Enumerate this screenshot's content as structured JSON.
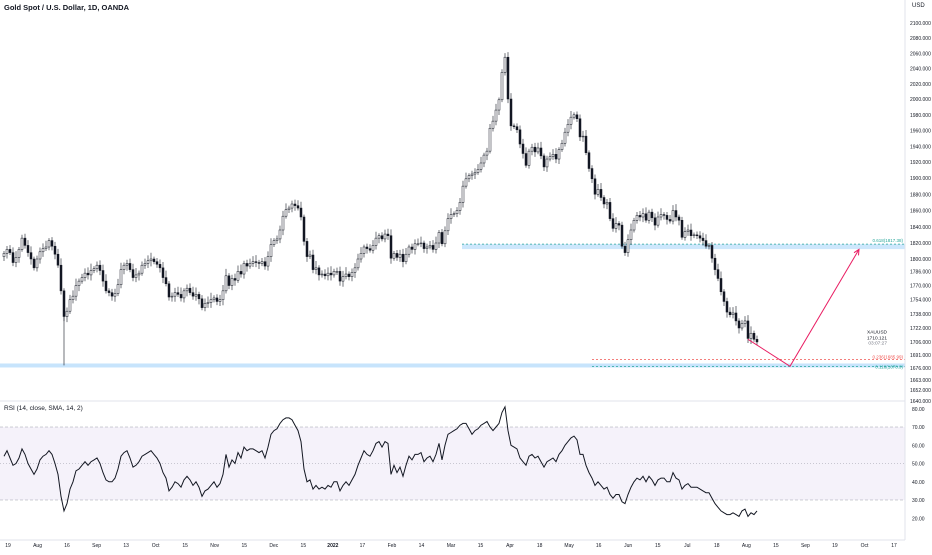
{
  "chart_data": [
    {
      "type": "candlestick",
      "title": "Gold Spot / U.S. Dollar, 1D, OANDA",
      "currency": "USD",
      "y_axis_labels": [
        "2100.000",
        "2080.000",
        "2060.000",
        "2040.000",
        "2020.000",
        "2000.000",
        "1980.000",
        "1960.000",
        "1940.000",
        "1920.000",
        "1900.000",
        "1880.000",
        "1860.000",
        "1840.000",
        "1820.000",
        "1800.000",
        "1786.000",
        "1770.000",
        "1754.000",
        "1738.000",
        "1722.000",
        "1706.000",
        "1691.000",
        "1676.000",
        "1663.000",
        "1652.000",
        "1640.000"
      ],
      "x_axis_labels": [
        "19",
        "Aug",
        "16",
        "Sep",
        "13",
        "Oct",
        "15",
        "Nov",
        "15",
        "Dec",
        "15",
        "2022",
        "17",
        "Feb",
        "14",
        "Mar",
        "15",
        "Apr",
        "18",
        "May",
        "16",
        "Jun",
        "15",
        "Jul",
        "18",
        "Aug",
        "15",
        "Sep",
        "19",
        "Oct",
        "17"
      ],
      "close_series": [
        1807,
        1812,
        1808,
        1796,
        1802,
        1812,
        1826,
        1817,
        1808,
        1800,
        1790,
        1800,
        1809,
        1813,
        1815,
        1823,
        1816,
        1806,
        1793,
        1764,
        1735,
        1741,
        1754,
        1758,
        1770,
        1775,
        1779,
        1784,
        1782,
        1787,
        1789,
        1793,
        1787,
        1775,
        1764,
        1762,
        1758,
        1761,
        1771,
        1788,
        1793,
        1795,
        1788,
        1779,
        1782,
        1784,
        1793,
        1795,
        1798,
        1800,
        1797,
        1794,
        1790,
        1779,
        1772,
        1757,
        1758,
        1762,
        1760,
        1756,
        1764,
        1767,
        1762,
        1758,
        1760,
        1755,
        1745,
        1750,
        1751,
        1754,
        1756,
        1752,
        1754,
        1764,
        1781,
        1770,
        1778,
        1776,
        1786,
        1783,
        1795,
        1792,
        1795,
        1797,
        1796,
        1795,
        1797,
        1792,
        1803,
        1818,
        1823,
        1825,
        1836,
        1853,
        1861,
        1863,
        1868,
        1866,
        1863,
        1852,
        1822,
        1803,
        1805,
        1788,
        1790,
        1782,
        1783,
        1781,
        1784,
        1782,
        1786,
        1786,
        1775,
        1780,
        1783,
        1780,
        1785,
        1790,
        1800,
        1807,
        1815,
        1813,
        1811,
        1817,
        1826,
        1829,
        1825,
        1831,
        1829,
        1801,
        1807,
        1802,
        1806,
        1797,
        1806,
        1815,
        1812,
        1819,
        1819,
        1820,
        1813,
        1815,
        1817,
        1812,
        1820,
        1833,
        1819,
        1835,
        1850,
        1855,
        1856,
        1860,
        1870,
        1890,
        1899,
        1903,
        1905,
        1907,
        1911,
        1919,
        1929,
        1934,
        1963,
        1972,
        1986,
        1999,
        2035,
        2055,
        2000,
        1966,
        1965,
        1961,
        1943,
        1931,
        1916,
        1934,
        1939,
        1933,
        1938,
        1928,
        1914,
        1924,
        1927,
        1930,
        1924,
        1936,
        1944,
        1958,
        1968,
        1977,
        1980,
        1975,
        1952,
        1953,
        1932,
        1912,
        1899,
        1880,
        1886,
        1876,
        1868,
        1870,
        1850,
        1838,
        1844,
        1842,
        1816,
        1808,
        1824,
        1836,
        1848,
        1854,
        1852,
        1856,
        1848,
        1858,
        1851,
        1842,
        1852,
        1855,
        1854,
        1849,
        1847,
        1860,
        1852,
        1848,
        1827,
        1834,
        1836,
        1829,
        1830,
        1829,
        1826,
        1823,
        1816,
        1817,
        1801,
        1788,
        1778,
        1763,
        1752,
        1740,
        1737,
        1739,
        1730,
        1722,
        1727,
        1730,
        1710,
        1716,
        1709,
        1706
      ],
      "horizontal_levels": [
        {
          "label": "0.618(1817.38)",
          "value": 1817.38
        },
        {
          "label": "0.236(1685.99)",
          "value": 1685.99
        },
        {
          "label": "0.118(1678.9)",
          "value": 1678.9
        }
      ],
      "ticker_label": "XAUUSD",
      "last_price": "1710.121",
      "countdown": "03:07:27",
      "projection_path": [
        {
          "x_index": 248,
          "y": 1709
        },
        {
          "x_index": 262,
          "y": 1678
        },
        {
          "x_index": 285,
          "y": 1812
        }
      ]
    },
    {
      "type": "line",
      "title": "RSI (14, close, SMA, 14, 2)",
      "y_axis_labels": [
        "80.00",
        "70.00",
        "60.00",
        "50.00",
        "40.00",
        "30.00",
        "20.00"
      ],
      "ylim": [
        18,
        84
      ],
      "upper_band": 70,
      "middle_band": 50,
      "lower_band": 30,
      "values": [
        54,
        57,
        53,
        49,
        50,
        53,
        58,
        55,
        50,
        47,
        44,
        47,
        52,
        54,
        55,
        57,
        55,
        50,
        44,
        32,
        24,
        28,
        36,
        40,
        46,
        47,
        49,
        51,
        49,
        51,
        52,
        53,
        50,
        45,
        41,
        40,
        40,
        42,
        47,
        54,
        56,
        57,
        53,
        48,
        49,
        51,
        54,
        55,
        56,
        57,
        55,
        53,
        50,
        45,
        42,
        35,
        37,
        40,
        39,
        37,
        41,
        43,
        41,
        38,
        40,
        37,
        32,
        35,
        36,
        38,
        40,
        37,
        39,
        44,
        55,
        48,
        52,
        50,
        56,
        53,
        59,
        57,
        58,
        58,
        57,
        56,
        57,
        53,
        59,
        66,
        68,
        69,
        72,
        74,
        75,
        75,
        74,
        71,
        68,
        62,
        47,
        40,
        41,
        36,
        38,
        36,
        37,
        36,
        38,
        37,
        40,
        40,
        35,
        38,
        40,
        38,
        41,
        44,
        49,
        53,
        57,
        55,
        54,
        57,
        61,
        62,
        59,
        62,
        61,
        44,
        49,
        45,
        48,
        43,
        49,
        54,
        52,
        55,
        55,
        56,
        51,
        53,
        54,
        51,
        55,
        61,
        52,
        60,
        66,
        67,
        68,
        69,
        71,
        72,
        72,
        69,
        66,
        68,
        69,
        71,
        72,
        73,
        70,
        68,
        70,
        72,
        78,
        81,
        68,
        60,
        59,
        58,
        53,
        51,
        49,
        54,
        55,
        53,
        54,
        51,
        48,
        51,
        52,
        53,
        51,
        55,
        57,
        60,
        62,
        64,
        65,
        63,
        55,
        55,
        49,
        45,
        42,
        38,
        40,
        38,
        36,
        37,
        33,
        31,
        33,
        33,
        29,
        28,
        33,
        37,
        40,
        42,
        41,
        43,
        40,
        43,
        41,
        38,
        41,
        42,
        42,
        40,
        40,
        45,
        42,
        41,
        36,
        38,
        39,
        37,
        37,
        37,
        36,
        35,
        34,
        34,
        31,
        28,
        26,
        24,
        23,
        22,
        22,
        23,
        22,
        21,
        24,
        25,
        21,
        23,
        22,
        24
      ]
    }
  ]
}
